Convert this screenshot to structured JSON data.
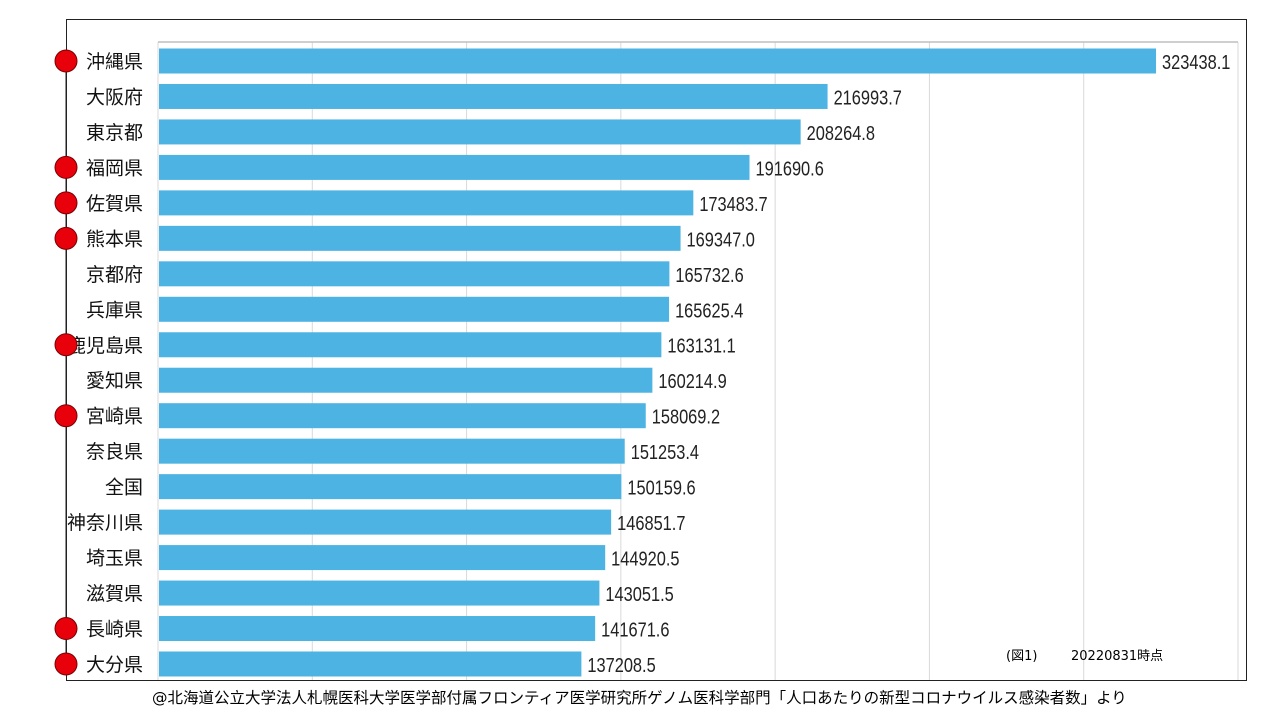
{
  "chart_data": {
    "type": "bar",
    "orientation": "horizontal",
    "categories": [
      "沖縄県",
      "大阪府",
      "東京都",
      "福岡県",
      "佐賀県",
      "熊本県",
      "京都府",
      "兵庫県",
      "鹿児島県",
      "愛知県",
      "宮崎県",
      "奈良県",
      "全国",
      "神奈川県",
      "埼玉県",
      "滋賀県",
      "長崎県",
      "大分県"
    ],
    "values": [
      323438.1,
      216993.7,
      208264.8,
      191690.6,
      173483.7,
      169347.0,
      165732.6,
      165625.4,
      163131.1,
      160214.9,
      158069.2,
      151253.4,
      150159.6,
      146851.7,
      144920.5,
      143051.5,
      141671.6,
      137208.5
    ],
    "value_labels": [
      "323438.1",
      "216993.7",
      "208264.8",
      "191690.6",
      "173483.7",
      "169347.0",
      "165732.6",
      "165625.4",
      "163131.1",
      "160214.9",
      "158069.2",
      "151253.4",
      "150159.6",
      "146851.7",
      "144920.5",
      "143051.5",
      "141671.6",
      "137208.5"
    ],
    "marked": [
      true,
      false,
      false,
      true,
      true,
      true,
      false,
      false,
      true,
      false,
      true,
      false,
      false,
      false,
      false,
      false,
      true,
      true
    ],
    "xlim": [
      0,
      350000
    ],
    "grid": true,
    "bar_color": "#4db3e3",
    "marker_color": "#e8000b"
  },
  "notes": {
    "figure": "(図1)",
    "date": "20220831時点"
  },
  "source": "@北海道公立大学法人札幌医科大学医学部付属フロンティア医学研究所ゲノム医科学部門「人口あたりの新型コロナウイルス感染者数」より"
}
